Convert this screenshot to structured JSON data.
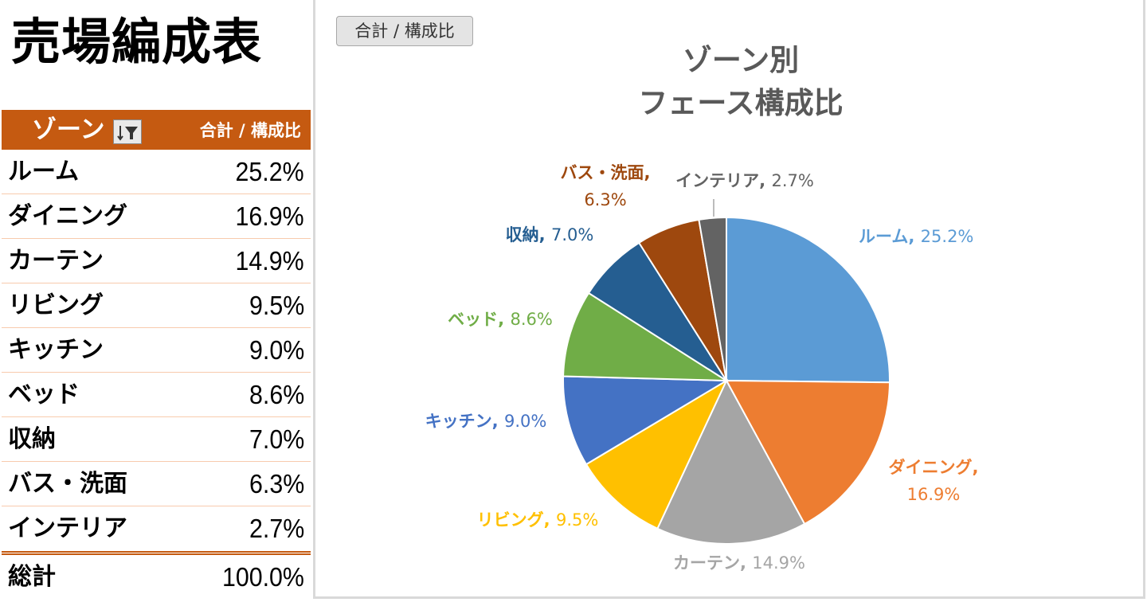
{
  "page_title": "売場編成表",
  "pivot": {
    "header_label": "ゾーン",
    "header_value": "合計 / 構成比",
    "rows": [
      {
        "label": "ルーム",
        "value": "25.2%"
      },
      {
        "label": "ダイニング",
        "value": "16.9%"
      },
      {
        "label": "カーテン",
        "value": "14.9%"
      },
      {
        "label": "リビング",
        "value": "9.5%"
      },
      {
        "label": "キッチン",
        "value": "9.0%"
      },
      {
        "label": "ベッド",
        "value": "8.6%"
      },
      {
        "label": "収納",
        "value": "7.0%"
      },
      {
        "label": "バス・洗面",
        "value": "6.3%"
      },
      {
        "label": "インテリア",
        "value": "2.7%"
      }
    ],
    "total_label": "総計",
    "total_value": "100.0%"
  },
  "field_button_label": "合計 / 構成比",
  "colors": {
    "header_bg": "#C55A11",
    "row_border": "#F8CBAD"
  },
  "icons": {
    "filter": "filter-sort-icon"
  },
  "chart_data": {
    "type": "pie",
    "title": [
      "ゾーン別",
      "フェース構成比"
    ],
    "categories": [
      "ルーム",
      "ダイニング",
      "カーテン",
      "リビング",
      "キッチン",
      "ベッド",
      "収納",
      "バス・洗面",
      "インテリア"
    ],
    "values": [
      25.2,
      16.9,
      14.9,
      9.5,
      9.0,
      8.6,
      7.0,
      6.3,
      2.7
    ],
    "value_labels": [
      "25.2%",
      "16.9%",
      "14.9%",
      "9.5%",
      "9.0%",
      "8.6%",
      "7.0%",
      "6.3%",
      "2.7%"
    ],
    "colors": [
      "#5B9BD5",
      "#ED7D31",
      "#A5A5A5",
      "#FFC000",
      "#4472C4",
      "#70AD47",
      "#255E91",
      "#9E480E",
      "#636363"
    ],
    "start_angle_deg": 0,
    "direction": "clockwise",
    "legend": "none",
    "data_labels": "outside"
  }
}
